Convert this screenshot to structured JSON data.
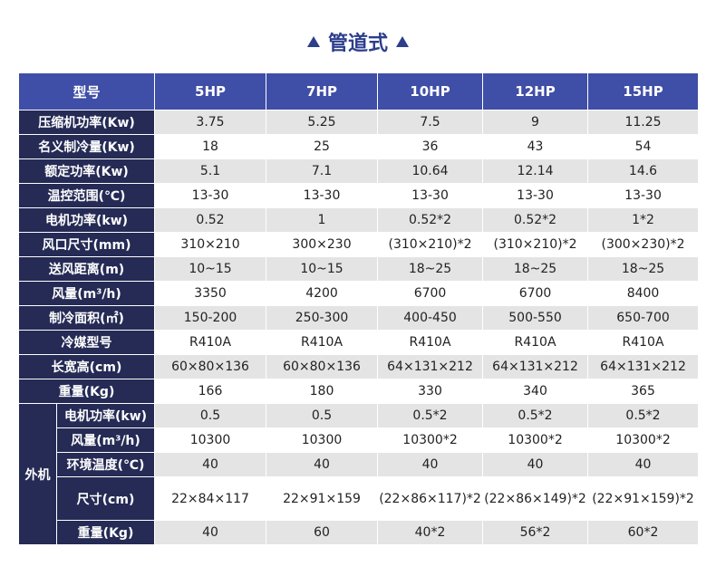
{
  "title": "管道式",
  "table": {
    "header": [
      "型号",
      "5HP",
      "7HP",
      "10HP",
      "12HP",
      "15HP"
    ],
    "rows": [
      {
        "label": "压缩机功率(Kw)",
        "values": [
          "3.75",
          "5.25",
          "7.5",
          "9",
          "11.25"
        ]
      },
      {
        "label": "名义制冷量(Kw)",
        "values": [
          "18",
          "25",
          "36",
          "43",
          "54"
        ]
      },
      {
        "label": "额定功率(Kw)",
        "values": [
          "5.1",
          "7.1",
          "10.64",
          "12.14",
          "14.6"
        ]
      },
      {
        "label": "温控范围(℃)",
        "values": [
          "13-30",
          "13-30",
          "13-30",
          "13-30",
          "13-30"
        ]
      },
      {
        "label": "电机功率(kw)",
        "values": [
          "0.52",
          "1",
          "0.52*2",
          "0.52*2",
          "1*2"
        ]
      },
      {
        "label": "风口尺寸(mm)",
        "values": [
          "310×210",
          "300×230",
          "(310×210)*2",
          "(310×210)*2",
          "(300×230)*2"
        ]
      },
      {
        "label": "送风距离(m)",
        "values": [
          "10~15",
          "10~15",
          "18~25",
          "18~25",
          "18~25"
        ]
      },
      {
        "label": "风量(m³/h)",
        "values": [
          "3350",
          "4200",
          "6700",
          "6700",
          "8400"
        ]
      },
      {
        "label": "制冷面积(㎡)",
        "values": [
          "150-200",
          "250-300",
          "400-450",
          "500-550",
          "650-700"
        ]
      },
      {
        "label": "冷媒型号",
        "values": [
          "R410A",
          "R410A",
          "R410A",
          "R410A",
          "R410A"
        ]
      },
      {
        "label": "长宽高(cm)",
        "values": [
          "60×80×136",
          "60×80×136",
          "64×131×212",
          "64×131×212",
          "64×131×212"
        ]
      },
      {
        "label": "重量(Kg)",
        "values": [
          "166",
          "180",
          "330",
          "340",
          "365"
        ]
      }
    ],
    "outdoor": {
      "label": "外机",
      "rows": [
        {
          "label": "电机功率(kw)",
          "values": [
            "0.5",
            "0.5",
            "0.5*2",
            "0.5*2",
            "0.5*2"
          ]
        },
        {
          "label": "风量(m³/h)",
          "values": [
            "10300",
            "10300",
            "10300*2",
            "10300*2",
            "10300*2"
          ]
        },
        {
          "label": "环境温度(℃)",
          "values": [
            "40",
            "40",
            "40",
            "40",
            "40"
          ]
        },
        {
          "label": "尺寸(cm)",
          "values": [
            "22×84×117",
            "22×91×159",
            "(22×86×117)*2",
            "(22×86×149)*2",
            "(22×91×159)*2"
          ]
        },
        {
          "label": "重量(Kg)",
          "values": [
            "40",
            "60",
            "40*2",
            "56*2",
            "60*2"
          ]
        }
      ]
    }
  }
}
